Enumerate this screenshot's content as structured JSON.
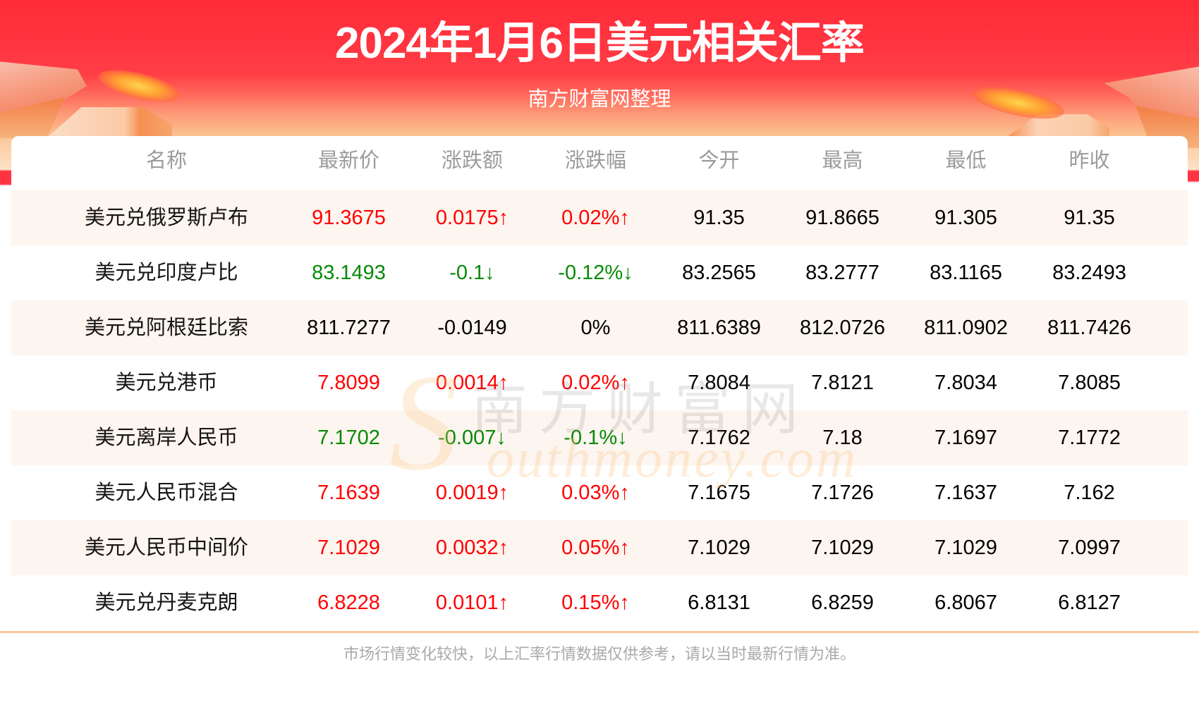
{
  "header": {
    "title": "2024年1月6日美元相关汇率",
    "subtitle": "南方财富网整理"
  },
  "chart_data": {
    "type": "table",
    "title": "2024年1月6日美元相关汇率",
    "subtitle": "南方财富网整理",
    "columns": [
      "名称",
      "最新价",
      "涨跌额",
      "涨跌幅",
      "今开",
      "最高",
      "最低",
      "昨收"
    ],
    "rows": [
      {
        "name": "美元兑俄罗斯卢布",
        "latest": "91.3675",
        "change": "0.0175↑",
        "change_pct": "0.02%↑",
        "open": "91.35",
        "high": "91.8665",
        "low": "91.305",
        "prev_close": "91.35",
        "trend": "up"
      },
      {
        "name": "美元兑印度卢比",
        "latest": "83.1493",
        "change": "-0.1↓",
        "change_pct": "-0.12%↓",
        "open": "83.2565",
        "high": "83.2777",
        "low": "83.1165",
        "prev_close": "83.2493",
        "trend": "down"
      },
      {
        "name": "美元兑阿根廷比索",
        "latest": "811.7277",
        "change": "-0.0149",
        "change_pct": "0%",
        "open": "811.6389",
        "high": "812.0726",
        "low": "811.0902",
        "prev_close": "811.7426",
        "trend": "flat"
      },
      {
        "name": "美元兑港币",
        "latest": "7.8099",
        "change": "0.0014↑",
        "change_pct": "0.02%↑",
        "open": "7.8084",
        "high": "7.8121",
        "low": "7.8034",
        "prev_close": "7.8085",
        "trend": "up"
      },
      {
        "name": "美元离岸人民币",
        "latest": "7.1702",
        "change": "-0.007↓",
        "change_pct": "-0.1%↓",
        "open": "7.1762",
        "high": "7.18",
        "low": "7.1697",
        "prev_close": "7.1772",
        "trend": "down"
      },
      {
        "name": "美元人民币混合",
        "latest": "7.1639",
        "change": "0.0019↑",
        "change_pct": "0.03%↑",
        "open": "7.1675",
        "high": "7.1726",
        "low": "7.1637",
        "prev_close": "7.162",
        "trend": "up"
      },
      {
        "name": "美元人民币中间价",
        "latest": "7.1029",
        "change": "0.0032↑",
        "change_pct": "0.05%↑",
        "open": "7.1029",
        "high": "7.1029",
        "low": "7.1029",
        "prev_close": "7.0997",
        "trend": "up"
      },
      {
        "name": "美元兑丹麦克朗",
        "latest": "6.8228",
        "change": "0.0101↑",
        "change_pct": "0.15%↑",
        "open": "6.8131",
        "high": "6.8259",
        "low": "6.8067",
        "prev_close": "6.8127",
        "trend": "up"
      }
    ]
  },
  "watermark": {
    "cn": "南方财富网",
    "en_initial": "S",
    "en_rest": "outhmoney.com"
  },
  "footer": {
    "disclaimer": "市场行情变化较快，以上汇率行情数据仅供参考，请以当时最新行情为准。"
  },
  "colors": {
    "header_red": "#ff2b38",
    "up": "#ff0000",
    "down": "#078a07",
    "flat": "#000000",
    "row_band": "#fdf5ef",
    "divider": "#f9caa2"
  }
}
